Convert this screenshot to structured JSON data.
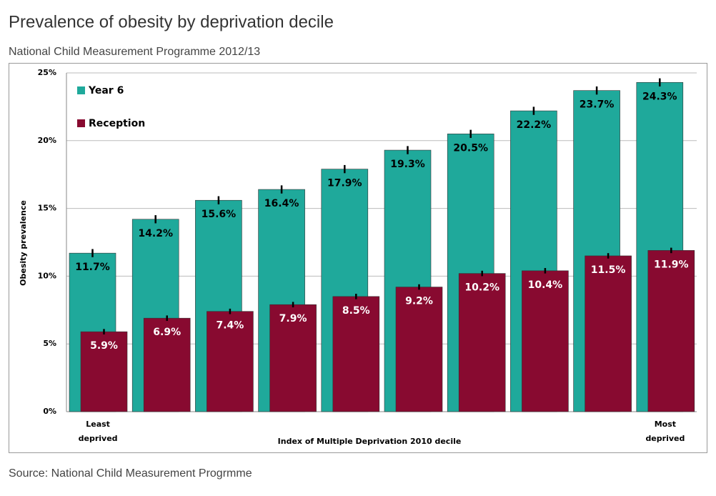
{
  "title": "Prevalence of obesity by deprivation decile",
  "subtitle": "National Child Measurement Programme 2012/13",
  "source": "Source: National Child Measurement Progrmme",
  "chart_data": {
    "type": "bar",
    "y_label": "Obesity prevalence",
    "x_label": "Index of Multiple Deprivation 2010 decile",
    "categories": [
      "Least deprived",
      null,
      null,
      null,
      null,
      null,
      null,
      null,
      null,
      "Most deprived"
    ],
    "series": [
      {
        "name": "Year 6",
        "color": "#1fa99b",
        "label_color": "#000000",
        "values": [
          11.7,
          14.2,
          15.6,
          16.4,
          17.9,
          19.3,
          20.5,
          22.2,
          23.7,
          24.3
        ],
        "value_labels": [
          "11.7%",
          "14.2%",
          "15.6%",
          "16.4%",
          "17.9%",
          "19.3%",
          "20.5%",
          "22.2%",
          "23.7%",
          "24.3%"
        ],
        "errors": [
          0.3,
          0.3,
          0.3,
          0.3,
          0.3,
          0.3,
          0.3,
          0.3,
          0.3,
          0.3
        ]
      },
      {
        "name": "Reception",
        "color": "#880a30",
        "label_color": "#ffffff",
        "values": [
          5.9,
          6.9,
          7.4,
          7.9,
          8.5,
          9.2,
          10.2,
          10.4,
          11.5,
          11.9
        ],
        "value_labels": [
          "5.9%",
          "6.9%",
          "7.4%",
          "7.9%",
          "8.5%",
          "9.2%",
          "10.2%",
          "10.4%",
          "11.5%",
          "11.9%"
        ],
        "errors": [
          0.2,
          0.2,
          0.2,
          0.2,
          0.2,
          0.2,
          0.2,
          0.2,
          0.2,
          0.2
        ]
      }
    ],
    "ylim": [
      0,
      25
    ],
    "yticks": [
      {
        "value": 0,
        "label": "0%"
      },
      {
        "value": 5,
        "label": "5%"
      },
      {
        "value": 10,
        "label": "10%"
      },
      {
        "value": 15,
        "label": "15%"
      },
      {
        "value": 20,
        "label": "20%"
      },
      {
        "value": 25,
        "label": "25%"
      }
    ],
    "grid": true,
    "legend": "top-left"
  }
}
